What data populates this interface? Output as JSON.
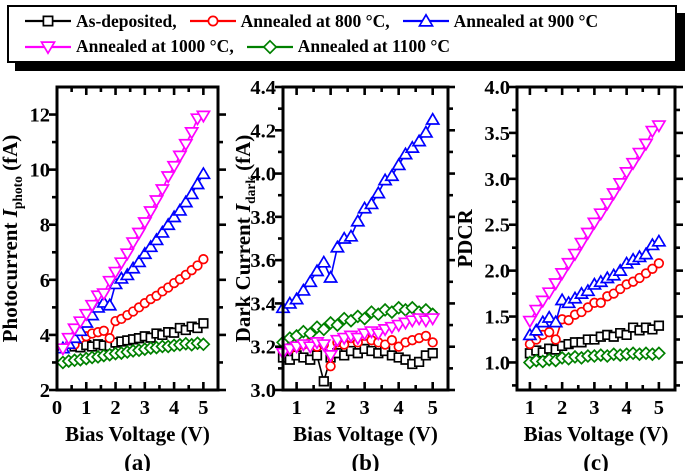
{
  "legend": {
    "rows": [
      {
        "items": [
          {
            "label": "As-deposited,",
            "color": "#000000",
            "marker": "square"
          },
          {
            "label": "Annealed at 800 °C,",
            "color": "#ff0000",
            "marker": "circle"
          },
          {
            "label": "Annealed at 900 °C",
            "color": "#0000ff",
            "marker": "triangle-up"
          }
        ]
      },
      {
        "items": [
          {
            "label": "Annealed at 1000 °C,",
            "color": "#ff00ff",
            "marker": "triangle-down"
          },
          {
            "label": "Annealed at 1100 °C",
            "color": "#008000",
            "marker": "diamond"
          }
        ]
      }
    ]
  },
  "chart_data": [
    {
      "id": "a",
      "type": "scatter",
      "panel_label": "(a)",
      "xlabel": "Bias Voltage (V)",
      "ylabel_parts": [
        {
          "t": "Photocurrent ",
          "s": "n"
        },
        {
          "t": "I",
          "s": "i"
        },
        {
          "t": "photo",
          "s": "sub"
        },
        {
          "t": " (fA)",
          "s": "n"
        }
      ],
      "xlim": [
        0,
        5.5
      ],
      "ylim": [
        2,
        13
      ],
      "xticks": [
        0,
        1,
        2,
        3,
        4,
        5
      ],
      "xticklabels": [
        "0",
        "1",
        "2",
        "3",
        "4",
        "5"
      ],
      "yticks": [
        2,
        4,
        6,
        8,
        10,
        12
      ],
      "yticklabels": [
        "2",
        "4",
        "6",
        "8",
        "10",
        "12"
      ],
      "grid": false,
      "legend_position": "top-outside",
      "series": [
        {
          "name": "As-deposited",
          "color": "#000000",
          "marker": "square",
          "x": [
            0.6,
            0.8,
            1.0,
            1.2,
            1.4,
            1.6,
            1.8,
            2.0,
            2.2,
            2.4,
            2.6,
            2.8,
            3.0,
            3.2,
            3.4,
            3.6,
            3.8,
            4.0,
            4.2,
            4.4,
            4.6,
            4.8,
            5.0
          ],
          "y": [
            3.58,
            3.55,
            3.63,
            3.58,
            3.66,
            3.62,
            3.6,
            3.72,
            3.76,
            3.8,
            3.84,
            3.88,
            3.95,
            3.9,
            4.05,
            4.0,
            4.1,
            4.08,
            4.25,
            4.18,
            4.3,
            4.25,
            4.42
          ]
        },
        {
          "name": "Annealed at 800 °C",
          "color": "#ff0000",
          "marker": "circle",
          "x": [
            0.6,
            0.8,
            1.0,
            1.2,
            1.4,
            1.6,
            1.8,
            2.0,
            2.2,
            2.4,
            2.6,
            2.8,
            3.0,
            3.2,
            3.4,
            3.6,
            3.8,
            4.0,
            4.2,
            4.4,
            4.6,
            4.8,
            5.0
          ],
          "y": [
            3.65,
            3.88,
            3.95,
            4.05,
            4.1,
            4.15,
            3.88,
            4.5,
            4.58,
            4.72,
            4.85,
            5.0,
            5.15,
            5.3,
            5.42,
            5.58,
            5.72,
            5.88,
            6.02,
            6.18,
            6.35,
            6.52,
            6.75
          ]
        },
        {
          "name": "Annealed at 1100 °C",
          "color": "#008000",
          "marker": "diamond",
          "x": [
            0.2,
            0.4,
            0.6,
            0.8,
            1.0,
            1.2,
            1.4,
            1.6,
            1.8,
            2.0,
            2.2,
            2.4,
            2.6,
            2.8,
            3.0,
            3.2,
            3.4,
            3.6,
            3.8,
            4.0,
            4.2,
            4.4,
            4.6,
            4.8,
            5.0
          ],
          "y": [
            3.0,
            3.05,
            3.08,
            3.1,
            3.14,
            3.18,
            3.2,
            3.25,
            3.28,
            3.32,
            3.34,
            3.38,
            3.42,
            3.44,
            3.48,
            3.52,
            3.54,
            3.58,
            3.58,
            3.62,
            3.64,
            3.68,
            3.64,
            3.7,
            3.66
          ]
        },
        {
          "name": "Annealed at 900 °C",
          "color": "#0000ff",
          "marker": "triangle-up",
          "x": [
            0.2,
            0.4,
            0.6,
            0.8,
            1.0,
            1.2,
            1.4,
            1.6,
            1.8,
            2.0,
            2.2,
            2.4,
            2.6,
            2.8,
            3.0,
            3.2,
            3.4,
            3.6,
            3.8,
            4.0,
            4.2,
            4.4,
            4.6,
            4.8,
            5.0
          ],
          "y": [
            3.52,
            3.68,
            3.9,
            4.15,
            4.45,
            4.72,
            5.0,
            5.18,
            5.08,
            5.85,
            6.05,
            6.18,
            6.42,
            6.65,
            6.95,
            7.2,
            7.45,
            7.72,
            8.0,
            8.28,
            8.52,
            8.82,
            9.12,
            9.48,
            9.85
          ]
        },
        {
          "name": "Annealed at 1000 °C",
          "color": "#ff00ff",
          "marker": "triangle-down",
          "x": [
            0.2,
            0.4,
            0.6,
            0.8,
            1.0,
            1.2,
            1.4,
            1.6,
            1.8,
            2.0,
            2.2,
            2.4,
            2.6,
            2.8,
            3.0,
            3.2,
            3.4,
            3.6,
            3.8,
            4.0,
            4.2,
            4.4,
            4.6,
            4.8,
            5.0
          ],
          "y": [
            3.5,
            3.88,
            4.22,
            4.48,
            4.75,
            5.08,
            5.42,
            5.5,
            5.95,
            6.28,
            6.62,
            6.95,
            7.35,
            7.7,
            8.08,
            8.48,
            8.88,
            9.28,
            9.75,
            10.12,
            10.5,
            10.92,
            11.35,
            11.85,
            11.95
          ]
        }
      ]
    },
    {
      "id": "b",
      "type": "scatter",
      "panel_label": "(b)",
      "xlabel": "Bias Voltage (V)",
      "ylabel_parts": [
        {
          "t": "Dark Current ",
          "s": "n"
        },
        {
          "t": "I",
          "s": "i"
        },
        {
          "t": "dark",
          "s": "sub"
        },
        {
          "t": " (fA)",
          "s": "n"
        }
      ],
      "xlim": [
        0.6,
        5.45
      ],
      "ylim": [
        3.0,
        4.4
      ],
      "xticks": [
        1,
        2,
        3,
        4,
        5
      ],
      "xticklabels": [
        "1",
        "2",
        "3",
        "4",
        "5"
      ],
      "yticks": [
        3.0,
        3.2,
        3.4,
        3.6,
        3.8,
        4.0,
        4.2,
        4.4
      ],
      "yticklabels": [
        "3.0",
        "3.2",
        "3.4",
        "3.6",
        "3.8",
        "4.0",
        "4.2",
        "4.4"
      ],
      "grid": false,
      "legend_position": "top-outside",
      "series": [
        {
          "name": "As-deposited",
          "color": "#000000",
          "marker": "square",
          "x": [
            0.6,
            0.8,
            1.0,
            1.2,
            1.4,
            1.6,
            1.8,
            2.0,
            2.2,
            2.4,
            2.6,
            2.8,
            3.0,
            3.2,
            3.4,
            3.6,
            3.8,
            4.0,
            4.2,
            4.4,
            4.6,
            4.8,
            5.0
          ],
          "y": [
            3.15,
            3.14,
            3.16,
            3.15,
            3.14,
            3.16,
            3.04,
            3.15,
            3.17,
            3.16,
            3.18,
            3.17,
            3.19,
            3.18,
            3.17,
            3.18,
            3.16,
            3.15,
            3.14,
            3.12,
            3.13,
            3.16,
            3.17
          ]
        },
        {
          "name": "Annealed at 800 °C",
          "color": "#ff0000",
          "marker": "circle",
          "x": [
            0.6,
            0.8,
            1.0,
            1.2,
            1.4,
            1.6,
            1.8,
            2.0,
            2.2,
            2.4,
            2.6,
            2.8,
            3.0,
            3.2,
            3.4,
            3.6,
            3.8,
            4.0,
            4.2,
            4.4,
            4.6,
            4.8,
            5.0
          ],
          "y": [
            3.18,
            3.19,
            3.2,
            3.21,
            3.22,
            3.2,
            3.21,
            3.11,
            3.22,
            3.21,
            3.24,
            3.22,
            3.25,
            3.23,
            3.22,
            3.21,
            3.23,
            3.2,
            3.22,
            3.23,
            3.24,
            3.25,
            3.22
          ]
        },
        {
          "name": "Annealed at 1100 °C",
          "color": "#008000",
          "marker": "diamond",
          "x": [
            0.6,
            0.8,
            1.0,
            1.2,
            1.4,
            1.6,
            1.8,
            2.0,
            2.2,
            2.4,
            2.6,
            2.8,
            3.0,
            3.2,
            3.4,
            3.6,
            3.8,
            4.0,
            4.2,
            4.4,
            4.6,
            4.8,
            5.0
          ],
          "y": [
            3.22,
            3.24,
            3.25,
            3.27,
            3.26,
            3.29,
            3.28,
            3.31,
            3.3,
            3.33,
            3.32,
            3.34,
            3.33,
            3.36,
            3.35,
            3.37,
            3.36,
            3.38,
            3.37,
            3.38,
            3.36,
            3.37,
            3.35
          ]
        },
        {
          "name": "Annealed at 900 °C",
          "color": "#0000ff",
          "marker": "triangle-up",
          "x": [
            0.6,
            0.8,
            1.0,
            1.2,
            1.4,
            1.6,
            1.8,
            2.0,
            2.2,
            2.4,
            2.6,
            2.8,
            3.0,
            3.2,
            3.4,
            3.6,
            3.8,
            4.0,
            4.2,
            4.4,
            4.6,
            4.8,
            5.0
          ],
          "y": [
            3.38,
            3.4,
            3.42,
            3.46,
            3.5,
            3.55,
            3.59,
            3.52,
            3.66,
            3.7,
            3.71,
            3.78,
            3.84,
            3.86,
            3.91,
            3.97,
            3.99,
            4.04,
            4.09,
            4.12,
            4.15,
            4.19,
            4.25
          ]
        },
        {
          "name": "Annealed at 1000 °C",
          "color": "#ff00ff",
          "marker": "triangle-down",
          "x": [
            0.6,
            0.8,
            1.0,
            1.2,
            1.4,
            1.6,
            1.8,
            2.0,
            2.2,
            2.4,
            2.6,
            2.8,
            3.0,
            3.2,
            3.4,
            3.6,
            3.8,
            4.0,
            4.2,
            4.4,
            4.6,
            4.8,
            5.0
          ],
          "y": [
            3.17,
            3.19,
            3.2,
            3.21,
            3.2,
            3.22,
            3.21,
            3.16,
            3.23,
            3.24,
            3.25,
            3.24,
            3.26,
            3.27,
            3.26,
            3.28,
            3.29,
            3.3,
            3.31,
            3.32,
            3.33,
            3.32,
            3.33
          ]
        }
      ]
    },
    {
      "id": "c",
      "type": "scatter",
      "panel_label": "(c)",
      "xlabel": "Bias Voltage (V)",
      "ylabel_parts": [
        {
          "t": "PDCR",
          "s": "n"
        }
      ],
      "xlim": [
        0.6,
        5.5
      ],
      "ylim": [
        0.7,
        4.0
      ],
      "xticks": [
        1,
        2,
        3,
        4,
        5
      ],
      "xticklabels": [
        "1",
        "2",
        "3",
        "4",
        "5"
      ],
      "yticks": [
        1.0,
        1.5,
        2.0,
        2.5,
        3.0,
        3.5,
        4.0
      ],
      "yticklabels": [
        "1.0",
        "1.5",
        "2.0",
        "2.5",
        "3.0",
        "3.5",
        "4.0"
      ],
      "grid": false,
      "legend_position": "top-outside",
      "series": [
        {
          "name": "As-deposited",
          "color": "#000000",
          "marker": "square",
          "x": [
            1.0,
            1.2,
            1.4,
            1.6,
            1.8,
            2.0,
            2.2,
            2.4,
            2.6,
            2.8,
            3.0,
            3.2,
            3.4,
            3.6,
            3.8,
            4.0,
            4.2,
            4.4,
            4.6,
            4.8,
            5.0
          ],
          "y": [
            1.1,
            1.13,
            1.11,
            1.15,
            1.14,
            1.18,
            1.2,
            1.22,
            1.22,
            1.25,
            1.25,
            1.28,
            1.3,
            1.28,
            1.32,
            1.3,
            1.38,
            1.35,
            1.38,
            1.36,
            1.4
          ]
        },
        {
          "name": "Annealed at 800 °C",
          "color": "#ff0000",
          "marker": "circle",
          "x": [
            1.0,
            1.2,
            1.4,
            1.6,
            1.8,
            2.0,
            2.2,
            2.4,
            2.6,
            2.8,
            3.0,
            3.2,
            3.4,
            3.6,
            3.8,
            4.0,
            4.2,
            4.4,
            4.6,
            4.8,
            5.0
          ],
          "y": [
            1.2,
            1.25,
            1.3,
            1.33,
            1.25,
            1.47,
            1.46,
            1.52,
            1.55,
            1.6,
            1.65,
            1.65,
            1.72,
            1.75,
            1.8,
            1.85,
            1.88,
            1.92,
            1.97,
            2.02,
            2.08
          ]
        },
        {
          "name": "Annealed at 1100 °C",
          "color": "#008000",
          "marker": "diamond",
          "x": [
            1.0,
            1.2,
            1.4,
            1.6,
            1.8,
            2.0,
            2.2,
            2.4,
            2.6,
            2.8,
            3.0,
            3.2,
            3.4,
            3.6,
            3.8,
            4.0,
            4.2,
            4.4,
            4.6,
            4.8,
            5.0
          ],
          "y": [
            1.0,
            1.02,
            1.01,
            1.03,
            1.02,
            1.05,
            1.04,
            1.06,
            1.05,
            1.07,
            1.07,
            1.08,
            1.07,
            1.09,
            1.08,
            1.09,
            1.1,
            1.09,
            1.1,
            1.09,
            1.1
          ]
        },
        {
          "name": "Annealed at 900 °C",
          "color": "#0000ff",
          "marker": "triangle-up",
          "x": [
            1.0,
            1.2,
            1.4,
            1.6,
            1.8,
            2.0,
            2.2,
            2.4,
            2.6,
            2.8,
            3.0,
            3.2,
            3.4,
            3.6,
            3.8,
            4.0,
            4.2,
            4.4,
            4.6,
            4.8,
            5.0
          ],
          "y": [
            1.3,
            1.35,
            1.44,
            1.49,
            1.44,
            1.68,
            1.65,
            1.7,
            1.75,
            1.78,
            1.85,
            1.88,
            1.92,
            1.95,
            2.0,
            2.08,
            2.12,
            2.15,
            2.18,
            2.28,
            2.32
          ]
        },
        {
          "name": "Annealed at 1000 °C",
          "color": "#ff00ff",
          "marker": "triangle-down",
          "x": [
            1.0,
            1.2,
            1.4,
            1.6,
            1.8,
            2.0,
            2.2,
            2.4,
            2.6,
            2.8,
            3.0,
            3.2,
            3.4,
            3.6,
            3.8,
            4.0,
            4.2,
            4.4,
            4.6,
            4.8,
            5.0
          ],
          "y": [
            1.45,
            1.57,
            1.67,
            1.76,
            1.86,
            1.97,
            2.08,
            2.18,
            2.3,
            2.41,
            2.52,
            2.62,
            2.73,
            2.84,
            2.95,
            3.07,
            3.17,
            3.28,
            3.38,
            3.52,
            3.58
          ]
        }
      ]
    }
  ]
}
